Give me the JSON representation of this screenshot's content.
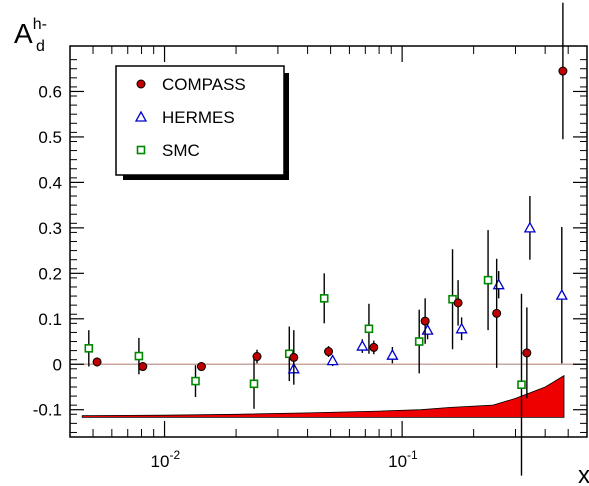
{
  "chart_data": {
    "type": "scatter",
    "title": "",
    "ylabel_main": "A",
    "ylabel_sup": "h-",
    "ylabel_sub": "d",
    "xlabel": "x",
    "x_scale": "log",
    "xlim": [
      0.004,
      0.6
    ],
    "ylim": [
      -0.16,
      0.7
    ],
    "y_ticks": [
      -0.1,
      0,
      0.1,
      0.2,
      0.3,
      0.4,
      0.5,
      0.6
    ],
    "y_tick_labels": [
      "-0.1",
      "0",
      "0.1",
      "0.2",
      "0.3",
      "0.4",
      "0.5",
      "0.6"
    ],
    "x_ticks": [
      0.01,
      0.1
    ],
    "x_tick_labels": [
      "10",
      "10"
    ],
    "x_tick_exponents": [
      "-2",
      "-1"
    ],
    "grid": false,
    "zero_line": true,
    "legend_position": "top-left",
    "series": [
      {
        "name": "COMPASS",
        "marker": "circle",
        "color": "#c00000",
        "points": [
          {
            "x": 0.0052,
            "y": 0.005,
            "err": 0.01
          },
          {
            "x": 0.0081,
            "y": -0.005,
            "err": 0.01
          },
          {
            "x": 0.0143,
            "y": -0.005,
            "err": 0.01
          },
          {
            "x": 0.0245,
            "y": 0.017,
            "err": 0.015
          },
          {
            "x": 0.035,
            "y": 0.015,
            "err": 0.06
          },
          {
            "x": 0.049,
            "y": 0.028,
            "err": 0.012
          },
          {
            "x": 0.076,
            "y": 0.037,
            "err": 0.015
          },
          {
            "x": 0.125,
            "y": 0.095,
            "err": 0.05
          },
          {
            "x": 0.172,
            "y": 0.135,
            "err": 0.05
          },
          {
            "x": 0.25,
            "y": 0.112,
            "err": 0.12
          },
          {
            "x": 0.335,
            "y": 0.025,
            "err": 0.1
          },
          {
            "x": 0.475,
            "y": 0.645,
            "err": 0.15
          }
        ]
      },
      {
        "name": "HERMES",
        "marker": "triangle",
        "color": "#0000cc",
        "points": [
          {
            "x": 0.035,
            "y": -0.01,
            "err": 0.02
          },
          {
            "x": 0.051,
            "y": 0.008,
            "err": 0.012
          },
          {
            "x": 0.068,
            "y": 0.04,
            "err": 0.015
          },
          {
            "x": 0.091,
            "y": 0.02,
            "err": 0.018
          },
          {
            "x": 0.128,
            "y": 0.075,
            "err": 0.02
          },
          {
            "x": 0.178,
            "y": 0.078,
            "err": 0.025
          },
          {
            "x": 0.255,
            "y": 0.175,
            "err": 0.03
          },
          {
            "x": 0.345,
            "y": 0.3,
            "err": 0.07
          },
          {
            "x": 0.47,
            "y": 0.152,
            "err": 0.15
          }
        ]
      },
      {
        "name": "SMC",
        "marker": "square",
        "color": "#008800",
        "points": [
          {
            "x": 0.0048,
            "y": 0.035,
            "err": 0.04
          },
          {
            "x": 0.0078,
            "y": 0.018,
            "err": 0.04
          },
          {
            "x": 0.0135,
            "y": -0.037,
            "err": 0.035
          },
          {
            "x": 0.0238,
            "y": -0.043,
            "err": 0.055
          },
          {
            "x": 0.0335,
            "y": 0.023,
            "err": 0.06
          },
          {
            "x": 0.047,
            "y": 0.145,
            "err": 0.055
          },
          {
            "x": 0.0725,
            "y": 0.078,
            "err": 0.055
          },
          {
            "x": 0.118,
            "y": 0.05,
            "err": 0.07
          },
          {
            "x": 0.163,
            "y": 0.143,
            "err": 0.11
          },
          {
            "x": 0.23,
            "y": 0.185,
            "err": 0.11
          },
          {
            "x": 0.318,
            "y": -0.045,
            "err": 0.2
          }
        ]
      }
    ],
    "systematic_band": {
      "color": "#ee0000",
      "x": [
        0.0045,
        0.01,
        0.02,
        0.04,
        0.08,
        0.12,
        0.16,
        0.24,
        0.3,
        0.4,
        0.48
      ],
      "upper": [
        -0.113,
        -0.112,
        -0.11,
        -0.107,
        -0.103,
        -0.1,
        -0.095,
        -0.09,
        -0.075,
        -0.05,
        -0.025
      ],
      "lower": [
        -0.117,
        -0.117,
        -0.117,
        -0.117,
        -0.117,
        -0.117,
        -0.117,
        -0.117,
        -0.117,
        -0.117,
        -0.117
      ]
    }
  }
}
